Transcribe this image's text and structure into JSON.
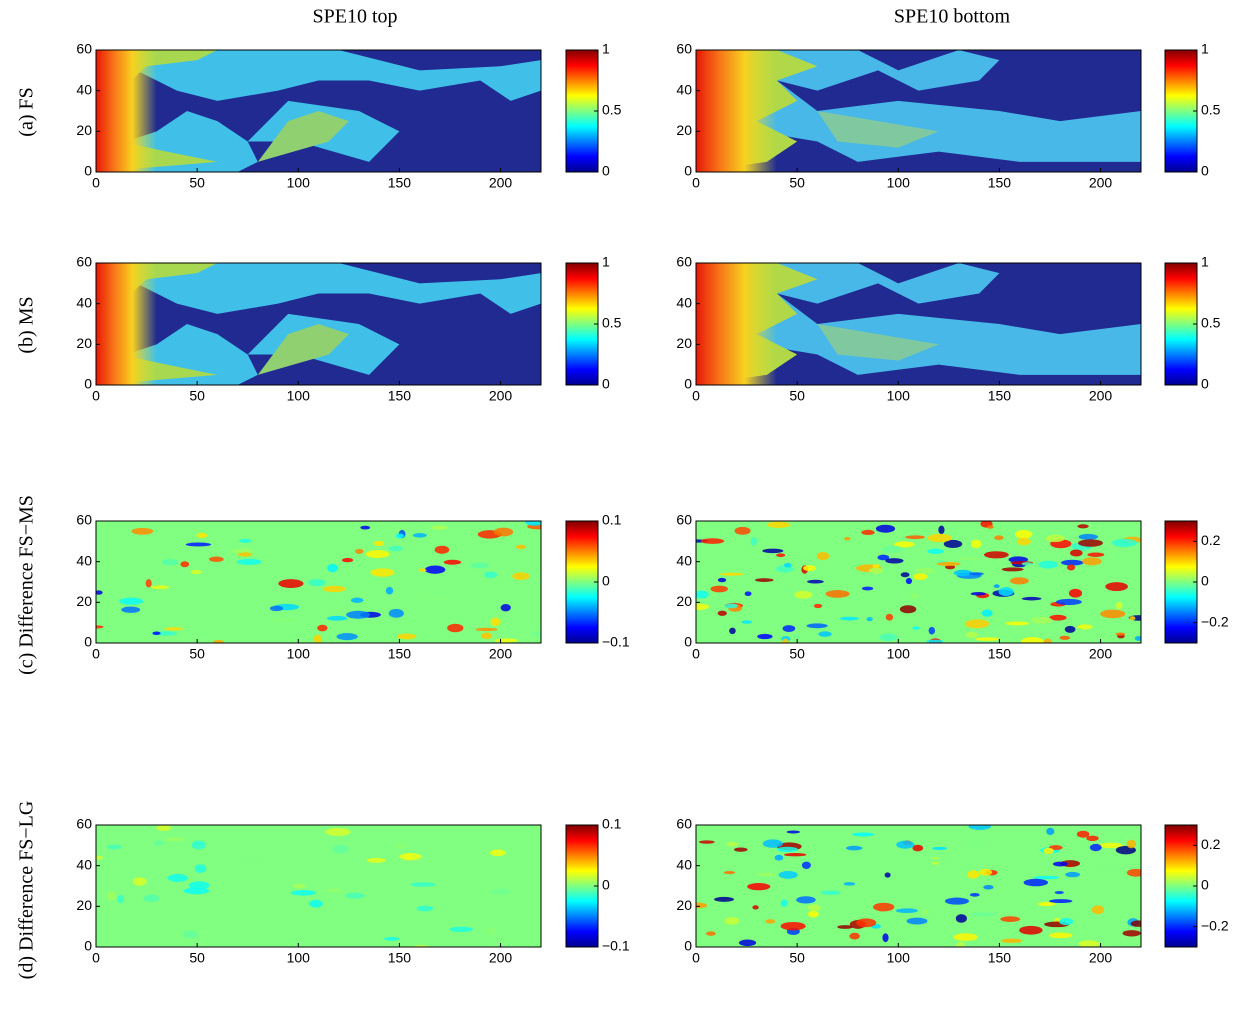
{
  "column_titles": [
    "SPE10 top",
    "SPE10 bottom"
  ],
  "row_labels": [
    "(a) FS",
    "(b) MS",
    "(c) Difference FS−MS",
    "(d) Difference FS−LG"
  ],
  "chart_data": [
    {
      "type": "heatmap",
      "colormap": "jet",
      "xlim": [
        0,
        220
      ],
      "ylim": [
        0,
        60
      ],
      "xticks": [
        0,
        50,
        100,
        150,
        200
      ],
      "yticks": [
        0,
        20,
        40,
        60
      ],
      "clim": [
        0,
        1
      ],
      "cticks": [
        0,
        0.5,
        1
      ]
    },
    {
      "type": "heatmap",
      "colormap": "jet",
      "xlim": [
        0,
        220
      ],
      "ylim": [
        0,
        60
      ],
      "xticks": [
        0,
        50,
        100,
        150,
        200
      ],
      "yticks": [
        0,
        20,
        40,
        60
      ],
      "clim": [
        0,
        1
      ],
      "cticks": [
        0,
        0.5,
        1
      ]
    },
    {
      "type": "heatmap",
      "colormap": "jet",
      "xlim": [
        0,
        220
      ],
      "ylim": [
        0,
        60
      ],
      "xticks": [
        0,
        50,
        100,
        150,
        200
      ],
      "yticks": [
        0,
        20,
        40,
        60
      ],
      "clim": [
        0,
        1
      ],
      "cticks": [
        0,
        0.5,
        1
      ]
    },
    {
      "type": "heatmap",
      "colormap": "jet",
      "xlim": [
        0,
        220
      ],
      "ylim": [
        0,
        60
      ],
      "xticks": [
        0,
        50,
        100,
        150,
        200
      ],
      "yticks": [
        0,
        20,
        40,
        60
      ],
      "clim": [
        0,
        1
      ],
      "cticks": [
        0,
        0.5,
        1
      ]
    },
    {
      "type": "heatmap",
      "colormap": "jet",
      "xlim": [
        0,
        220
      ],
      "ylim": [
        0,
        60
      ],
      "xticks": [
        0,
        50,
        100,
        150,
        200
      ],
      "yticks": [
        0,
        20,
        40,
        60
      ],
      "clim": [
        -0.1,
        0.1
      ],
      "cticks": [
        {
          "value": -0.1,
          "label": "−0.1"
        },
        0,
        0.1
      ]
    },
    {
      "type": "heatmap",
      "colormap": "jet",
      "xlim": [
        0,
        220
      ],
      "ylim": [
        0,
        60
      ],
      "xticks": [
        0,
        50,
        100,
        150,
        200
      ],
      "yticks": [
        0,
        20,
        40,
        60
      ],
      "clim": [
        -0.3,
        0.3
      ],
      "cticks": [
        {
          "value": -0.2,
          "label": "−0.2"
        },
        0,
        0.2
      ]
    },
    {
      "type": "heatmap",
      "colormap": "jet",
      "xlim": [
        0,
        220
      ],
      "ylim": [
        0,
        60
      ],
      "xticks": [
        0,
        50,
        100,
        150,
        200
      ],
      "yticks": [
        0,
        20,
        40,
        60
      ],
      "clim": [
        -0.1,
        0.1
      ],
      "cticks": [
        {
          "value": -0.1,
          "label": "−0.1"
        },
        0,
        0.1
      ]
    },
    {
      "type": "heatmap",
      "colormap": "jet",
      "xlim": [
        0,
        220
      ],
      "ylim": [
        0,
        60
      ],
      "xticks": [
        0,
        50,
        100,
        150,
        200
      ],
      "yticks": [
        0,
        20,
        40,
        60
      ],
      "clim": [
        -0.3,
        0.3
      ],
      "cticks": [
        {
          "value": -0.2,
          "label": "−0.2"
        },
        0,
        0.2
      ]
    }
  ]
}
